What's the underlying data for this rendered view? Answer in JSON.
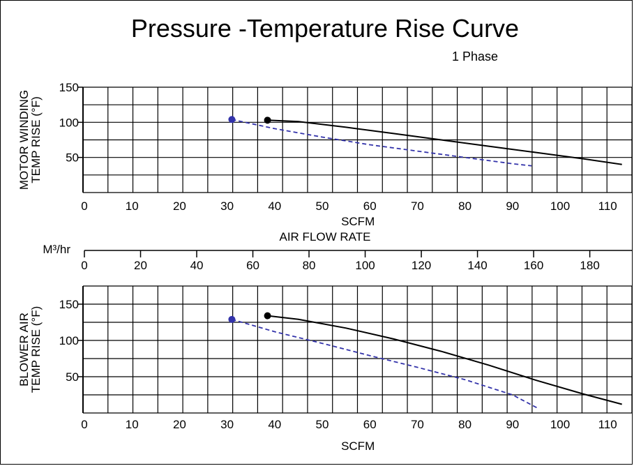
{
  "title": "Pressure -Temperature Rise Curve",
  "subtitle": "1 Phase",
  "chart_data": [
    {
      "type": "line",
      "ylabel_line1": "MOTOR WINDING",
      "ylabel_line2": "TEMP RISE (°F)",
      "xlabel": "SCFM",
      "xlim": [
        0,
        115
      ],
      "ylim": [
        0,
        150
      ],
      "xticks": [
        0,
        10,
        20,
        30,
        40,
        50,
        60,
        70,
        80,
        90,
        100,
        110
      ],
      "yticks": [
        50,
        100,
        150
      ],
      "grid": true,
      "series": [
        {
          "color": "#000000",
          "dash": "solid",
          "x": [
            38.5,
            45,
            55,
            65,
            75,
            85,
            95,
            105,
            113
          ],
          "y": [
            103,
            101,
            93,
            84,
            75,
            66,
            57,
            48,
            40
          ]
        },
        {
          "color": "#3333aa",
          "dash": "dashed",
          "x": [
            31,
            40,
            50,
            60,
            70,
            80,
            90,
            94
          ],
          "y": [
            104,
            91,
            79,
            68,
            59,
            50,
            41,
            38
          ]
        }
      ]
    },
    {
      "type": "line",
      "ylabel_line1": "BLOWER AIR",
      "ylabel_line2": "TEMP RISE (°F)",
      "xlabel": "SCFM",
      "xlim": [
        0,
        115
      ],
      "ylim": [
        0,
        175
      ],
      "xticks": [
        0,
        10,
        20,
        30,
        40,
        50,
        60,
        70,
        80,
        90,
        100,
        110
      ],
      "yticks": [
        50,
        100,
        150
      ],
      "grid": true,
      "series": [
        {
          "color": "#000000",
          "dash": "solid",
          "x": [
            38.5,
            45,
            55,
            65,
            75,
            85,
            95,
            105,
            113
          ],
          "y": [
            134,
            129,
            117,
            102,
            85,
            66,
            45,
            26,
            12
          ]
        },
        {
          "color": "#3333aa",
          "dash": "dashed",
          "x": [
            31,
            40,
            50,
            60,
            70,
            80,
            90,
            95.5
          ],
          "y": [
            129,
            112,
            96,
            79,
            63,
            46,
            25,
            6
          ]
        }
      ]
    }
  ],
  "middle_axis": {
    "title": "AIR FLOW RATE",
    "unit_label": "M³/hr",
    "ticks": [
      0,
      20,
      40,
      60,
      80,
      100,
      120,
      140,
      160,
      180
    ],
    "max": 195
  }
}
